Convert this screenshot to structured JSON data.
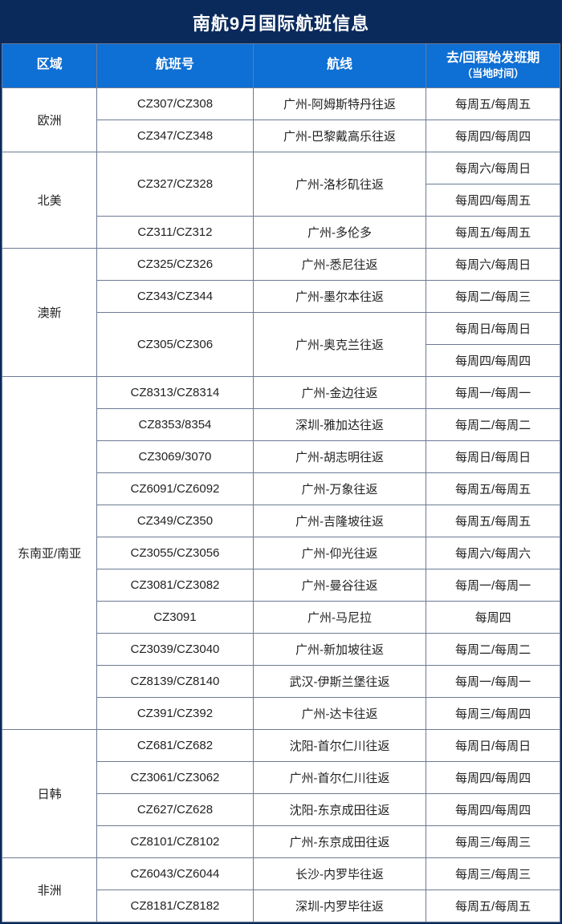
{
  "title": "南航9月国际航班信息",
  "colors": {
    "title_bg": "#0a2a5c",
    "header_bg": "#0e6fd4",
    "border": "#6c7a94",
    "text": "#222222",
    "header_text": "#ffffff"
  },
  "font": {
    "title_size": 22,
    "header_size": 16,
    "cell_size": 15
  },
  "columns": [
    {
      "key": "region",
      "label": "区域"
    },
    {
      "key": "flight",
      "label": "航班号"
    },
    {
      "key": "route",
      "label": "航线"
    },
    {
      "key": "sched",
      "label_line1": "去/回程始发班期",
      "label_line2": "（当地时间）"
    }
  ],
  "regions": [
    {
      "name": "欧洲",
      "rows": [
        {
          "flight": "CZ307/CZ308",
          "route": "广州-阿姆斯特丹往返",
          "sched": "每周五/每周五"
        },
        {
          "flight": "CZ347/CZ348",
          "route": "广州-巴黎戴高乐往返",
          "sched": "每周四/每周四"
        }
      ]
    },
    {
      "name": "北美",
      "rows": [
        {
          "flight": "CZ327/CZ328",
          "flight_rowspan": 2,
          "route": "广州-洛杉矶往返",
          "route_rowspan": 2,
          "sched": "每周六/每周日"
        },
        {
          "sched": "每周四/每周五"
        },
        {
          "flight": "CZ311/CZ312",
          "route": "广州-多伦多",
          "sched": "每周五/每周五"
        }
      ]
    },
    {
      "name": "澳新",
      "rows": [
        {
          "flight": "CZ325/CZ326",
          "route": "广州-悉尼往返",
          "sched": "每周六/每周日"
        },
        {
          "flight": "CZ343/CZ344",
          "route": "广州-墨尔本往返",
          "sched": "每周二/每周三"
        },
        {
          "flight": "CZ305/CZ306",
          "flight_rowspan": 2,
          "route": "广州-奥克兰往返",
          "route_rowspan": 2,
          "sched": "每周日/每周日"
        },
        {
          "sched": "每周四/每周四"
        }
      ]
    },
    {
      "name": "东南亚/南亚",
      "rows": [
        {
          "flight": "CZ8313/CZ8314",
          "route": "广州-金边往返",
          "sched": "每周一/每周一"
        },
        {
          "flight": "CZ8353/8354",
          "route": "深圳-雅加达往返",
          "sched": "每周二/每周二"
        },
        {
          "flight": "CZ3069/3070",
          "route": "广州-胡志明往返",
          "sched": "每周日/每周日"
        },
        {
          "flight": "CZ6091/CZ6092",
          "route": "广州-万象往返",
          "sched": "每周五/每周五"
        },
        {
          "flight": "CZ349/CZ350",
          "route": "广州-吉隆坡往返",
          "sched": "每周五/每周五"
        },
        {
          "flight": "CZ3055/CZ3056",
          "route": "广州-仰光往返",
          "sched": "每周六/每周六"
        },
        {
          "flight": "CZ3081/CZ3082",
          "route": "广州-曼谷往返",
          "sched": "每周一/每周一"
        },
        {
          "flight": "CZ3091",
          "route": "广州-马尼拉",
          "sched": "每周四"
        },
        {
          "flight": "CZ3039/CZ3040",
          "route": "广州-新加坡往返",
          "sched": "每周二/每周二"
        },
        {
          "flight": "CZ8139/CZ8140",
          "route": "武汉-伊斯兰堡往返",
          "sched": "每周一/每周一"
        },
        {
          "flight": "CZ391/CZ392",
          "route": "广州-达卡往返",
          "sched": "每周三/每周四"
        }
      ]
    },
    {
      "name": "日韩",
      "rows": [
        {
          "flight": "CZ681/CZ682",
          "route": "沈阳-首尔仁川往返",
          "sched": "每周日/每周日"
        },
        {
          "flight": "CZ3061/CZ3062",
          "route": "广州-首尔仁川往返",
          "sched": "每周四/每周四"
        },
        {
          "flight": "CZ627/CZ628",
          "route": "沈阳-东京成田往返",
          "sched": "每周四/每周四"
        },
        {
          "flight": "CZ8101/CZ8102",
          "route": "广州-东京成田往返",
          "sched": "每周三/每周三"
        }
      ]
    },
    {
      "name": "非洲",
      "rows": [
        {
          "flight": "CZ6043/CZ6044",
          "route": "长沙-内罗毕往返",
          "sched": "每周三/每周三"
        },
        {
          "flight": "CZ8181/CZ8182",
          "route": "深圳-内罗毕往返",
          "sched": "每周五/每周五"
        }
      ]
    }
  ]
}
